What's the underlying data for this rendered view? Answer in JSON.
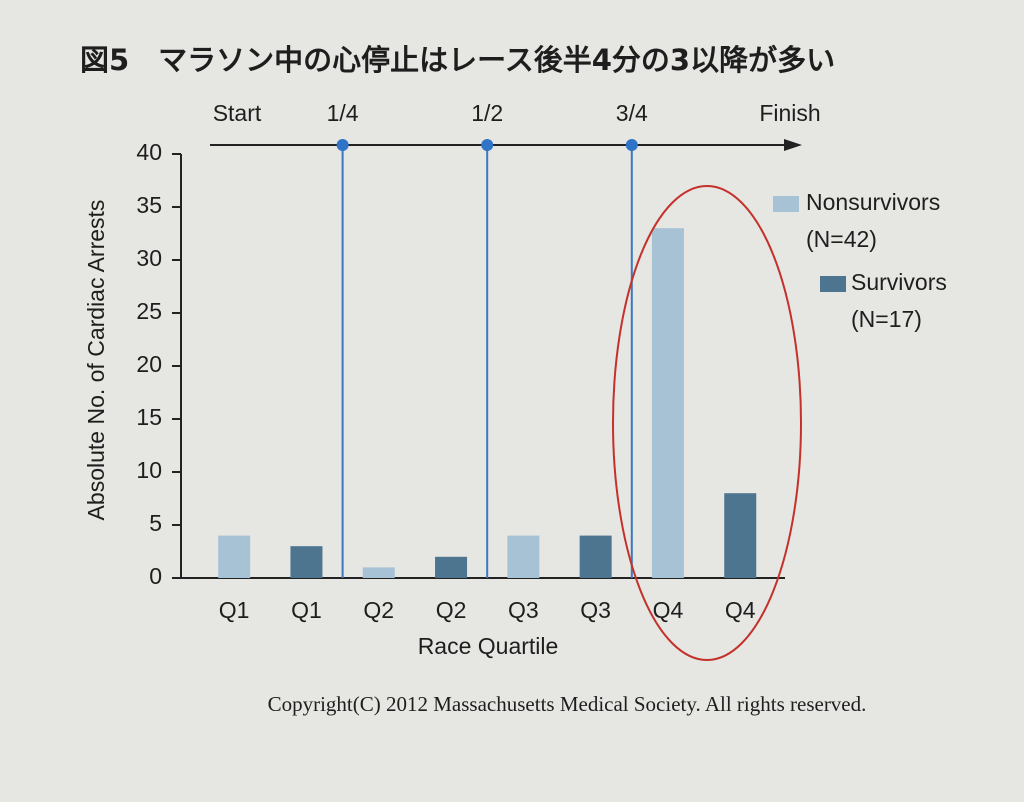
{
  "chart_data": {
    "type": "bar",
    "title": "図5　マラソン中の心停止はレース後半4分の3以降が多い",
    "x_label": "Race Quartile",
    "y_label": "Absolute No. of Cardiac Arrests",
    "categories": [
      "Q1",
      "Q1",
      "Q2",
      "Q2",
      "Q3",
      "Q3",
      "Q4",
      "Q4"
    ],
    "series": [
      {
        "name": "Nonsurvivors",
        "count_label": "(N=42)",
        "color": "#a7c2d5",
        "values": [
          4,
          null,
          1,
          null,
          4,
          null,
          33,
          null
        ]
      },
      {
        "name": "Survivors",
        "count_label": "(N=17)",
        "color": "#4d7590",
        "values": [
          null,
          3,
          null,
          2,
          null,
          4,
          null,
          8
        ]
      }
    ],
    "race_markers": [
      "Start",
      "1/4",
      "1/2",
      "3/4",
      "Finish"
    ],
    "ylim": [
      0,
      40
    ],
    "yticks": [
      0,
      5,
      10,
      15,
      20,
      25,
      30,
      35,
      40
    ],
    "copyright": "Copyright(C) 2012 Massachusetts Medical Society. All rights reserved."
  }
}
